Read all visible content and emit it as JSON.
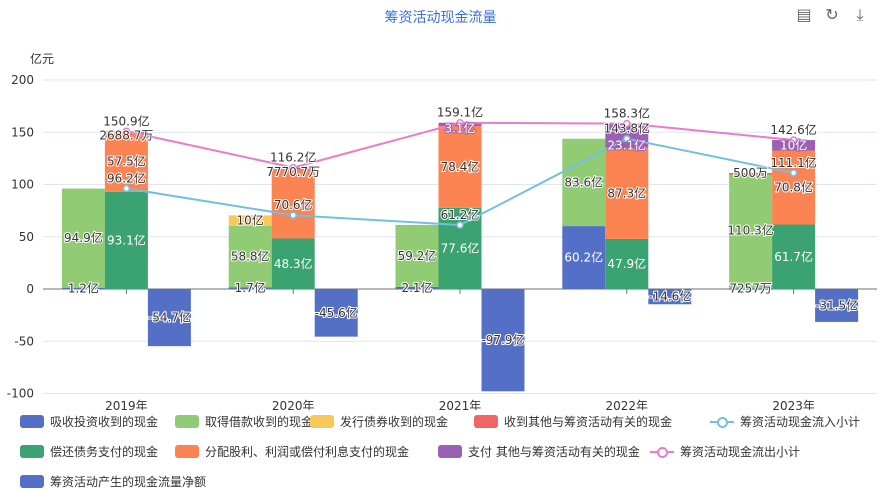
{
  "header": {
    "title": "筹资活动现金流量",
    "tools": [
      "data-view-icon",
      "refresh-icon",
      "download-icon"
    ]
  },
  "chart_data": {
    "type": "bar",
    "title": "筹资活动现金流量",
    "ylabel": "亿元",
    "ylim": [
      -100,
      200
    ],
    "yticks": [
      "-100",
      "-50",
      "0",
      "50",
      "100",
      "150",
      "200"
    ],
    "ytick_values": [
      -100,
      -50,
      0,
      50,
      100,
      150,
      200
    ],
    "categories": [
      "2019年",
      "2020年",
      "2021年",
      "2022年",
      "2023年"
    ],
    "series": [
      {
        "name": "吸收投资收到的现金",
        "stack": "in",
        "color": "#5470c6",
        "values": [
          1.2,
          1.7,
          2.1,
          60.2,
          0.7257
        ],
        "labels": [
          "1.2亿",
          "1.7亿",
          "2.1亿",
          "60.2亿",
          "7257万"
        ]
      },
      {
        "name": "取得借款收到的现金",
        "stack": "in",
        "color": "#91cc75",
        "values": [
          94.9,
          58.8,
          59.2,
          83.6,
          110.3
        ],
        "labels": [
          "94.9亿",
          "58.8亿",
          "59.2亿",
          "83.6亿",
          "110.3亿"
        ]
      },
      {
        "name": "发行债券收到的现金",
        "stack": "in",
        "color": "#fac858",
        "values": [
          0,
          10,
          0,
          0,
          0
        ],
        "labels": [
          "",
          "10亿",
          "",
          "",
          ""
        ]
      },
      {
        "name": "收到其他与筹资活动有关的现金",
        "stack": "in",
        "color": "#ee6666",
        "values": [
          0,
          0,
          0,
          0,
          0.05
        ],
        "labels": [
          "",
          "",
          "",
          "",
          "500万"
        ]
      },
      {
        "name": "偿还债务支付的现金",
        "stack": "out",
        "color": "#3ba272",
        "values": [
          93.1,
          48.3,
          77.6,
          47.9,
          61.7
        ],
        "labels": [
          "93.1亿",
          "48.3亿",
          "77.6亿",
          "47.9亿",
          "61.7亿"
        ]
      },
      {
        "name": "分配股利、利润或偿付利息支付的现金",
        "stack": "out",
        "color": "#fc8452",
        "values": [
          57.5,
          67.1,
          78.4,
          87.3,
          70.8
        ],
        "labels": [
          "57.5亿",
          "",
          "78.4亿",
          "87.3亿",
          "70.8亿"
        ]
      },
      {
        "name": "支付 其他与筹资活动有关的现金",
        "stack": "out",
        "color": "#9a60b4",
        "values": [
          0.2689,
          0.7771,
          3.1,
          23.1,
          10
        ],
        "labels": [
          "2688.7万",
          "7770.7万",
          "3.1亿",
          "23.1亿",
          "10亿"
        ]
      },
      {
        "name": "筹资活动产生的现金流量净额",
        "stack": "net",
        "color": "#5470c6",
        "values": [
          -54.7,
          -45.6,
          -97.9,
          -14.6,
          -31.5
        ],
        "labels": [
          "-54.7亿",
          "-45.6亿",
          "-97.9亿",
          "-14.6亿",
          "-31.5亿"
        ]
      }
    ],
    "lines": [
      {
        "name": "筹资活动现金流入小计",
        "type": "line",
        "color": "#73c0de",
        "values": [
          96.2,
          70.6,
          61.2,
          143.8,
          111.1
        ],
        "labels": [
          "96.2亿",
          "70.6亿",
          "61.2亿",
          "143.8亿",
          "111.1亿"
        ]
      },
      {
        "name": "筹资活动现金流出小计",
        "type": "line",
        "color": "#ea7ccc",
        "values": [
          150.9,
          116.2,
          159.1,
          158.3,
          142.6
        ],
        "labels": [
          "150.9亿",
          "116.2亿",
          "159.1亿",
          "158.3亿",
          "142.6亿"
        ]
      }
    ],
    "legend_position": "bottom"
  }
}
